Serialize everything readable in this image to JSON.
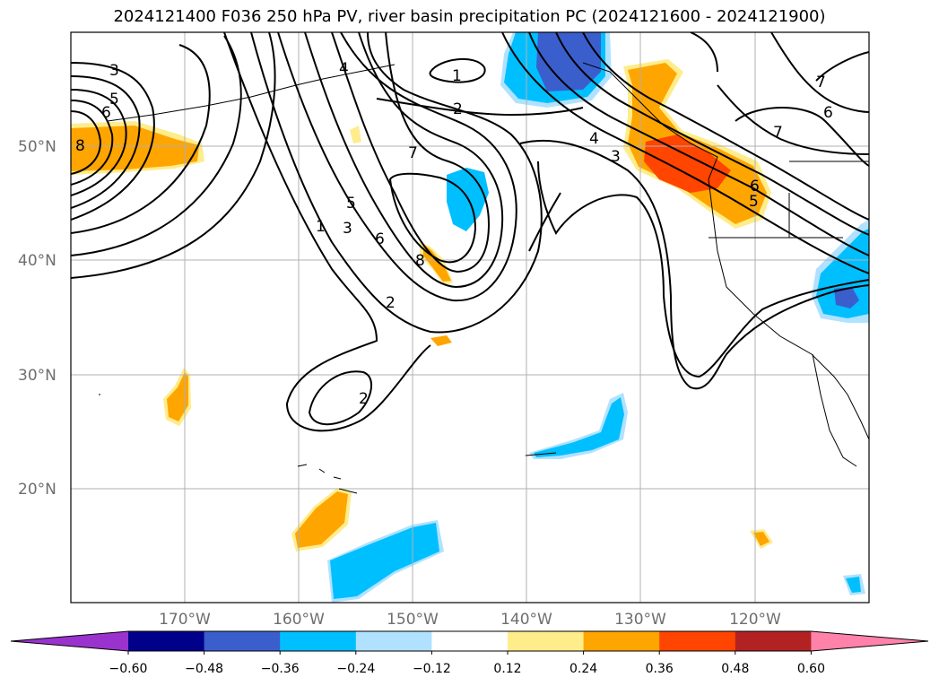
{
  "title": "2024121400 F036 250 hPa PV, river basin precipitation PC (2024121600 - 2024121900)",
  "map": {
    "lat_labels": [
      "50°N",
      "40°N",
      "30°N",
      "20°N"
    ],
    "lon_labels": [
      "170°W",
      "160°W",
      "150°W",
      "140°W",
      "130°W",
      "120°W"
    ],
    "contour_labels": [
      "3",
      "5",
      "6",
      "8",
      "1",
      "2",
      "4",
      "7",
      "1",
      "3",
      "5",
      "6",
      "8",
      "2",
      "2",
      "4",
      "3",
      "6",
      "5",
      "7",
      "6",
      "7"
    ]
  },
  "colorbar": {
    "ticks": [
      "−0.60",
      "−0.48",
      "−0.36",
      "−0.24",
      "−0.12",
      "0.12",
      "0.24",
      "0.36",
      "0.48",
      "0.60"
    ],
    "colors": [
      "#9a32cd",
      "#00008b",
      "#3a5fcd",
      "#00bfff",
      "#b0e2ff",
      "#ffffff",
      "#ffec8b",
      "#ffa500",
      "#ff4500",
      "#b22222",
      "#ff82ab"
    ]
  }
}
